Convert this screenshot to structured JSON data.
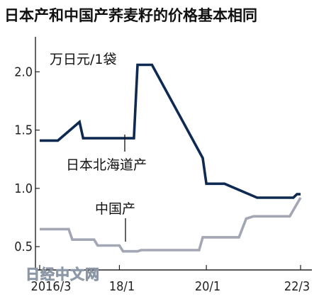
{
  "chart_data": {
    "type": "line",
    "title": "日本产和中国产荞麦籽的价格基本相同",
    "unit_label": "万日元/1袋",
    "x_ticks": [
      "2016/3",
      "18/1",
      "20/1",
      "22/3"
    ],
    "y_ticks": [
      "0.5",
      "1.0",
      "1.5",
      "2.0"
    ],
    "ylim": [
      0.3,
      2.3
    ],
    "series": [
      {
        "name": "日本北海道产",
        "color": "#0f2a52",
        "points": [
          [
            "2016/3",
            1.41
          ],
          [
            "2016/8",
            1.41
          ],
          [
            "2017/2",
            1.57
          ],
          [
            "2017/3",
            1.43
          ],
          [
            "2018/5",
            1.43
          ],
          [
            "2018/6",
            2.06
          ],
          [
            "2018/10",
            2.06
          ],
          [
            "2019/12",
            1.26
          ],
          [
            "2020/1",
            1.04
          ],
          [
            "2020/6",
            1.04
          ],
          [
            "2021/3",
            0.92
          ],
          [
            "2022/1",
            0.92
          ],
          [
            "2022/2",
            0.95
          ],
          [
            "2022/3",
            0.95
          ]
        ]
      },
      {
        "name": "中国产",
        "color": "#a3a7b4",
        "points": [
          [
            "2016/3",
            0.65
          ],
          [
            "2016/11",
            0.65
          ],
          [
            "2016/12",
            0.56
          ],
          [
            "2017/6",
            0.56
          ],
          [
            "2017/7",
            0.51
          ],
          [
            "2018/1",
            0.51
          ],
          [
            "2018/2",
            0.46
          ],
          [
            "2018/6",
            0.46
          ],
          [
            "2018/7",
            0.47
          ],
          [
            "2019/11",
            0.47
          ],
          [
            "2019/12",
            0.58
          ],
          [
            "2020/10",
            0.58
          ],
          [
            "2020/12",
            0.74
          ],
          [
            "2021/2",
            0.76
          ],
          [
            "2021/12",
            0.76
          ],
          [
            "2022/3",
            0.92
          ]
        ]
      }
    ],
    "annotations": [
      {
        "text": "日本北海道产",
        "series": 0
      },
      {
        "text": "中国产",
        "series": 1
      }
    ]
  },
  "watermark": "日经中文网"
}
